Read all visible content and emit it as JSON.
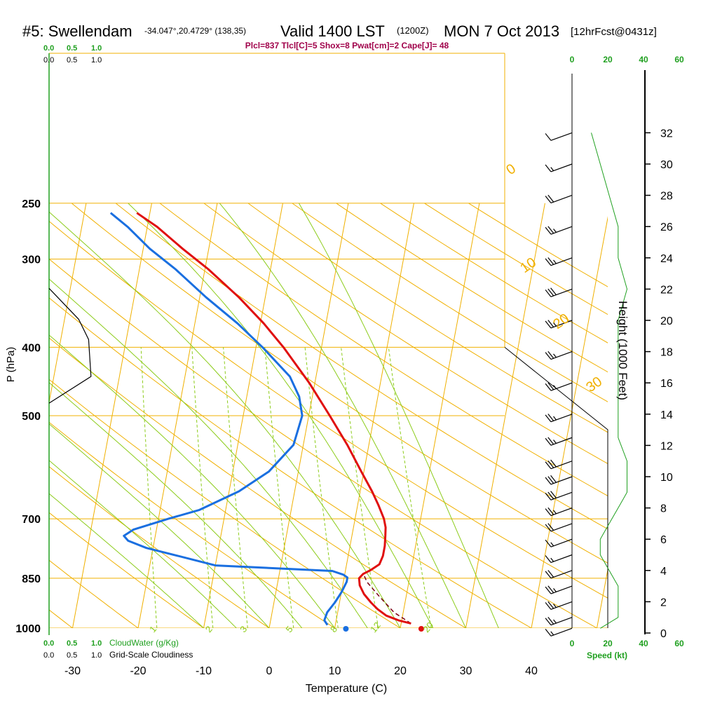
{
  "header": {
    "station": "#5: Swellendam",
    "coords": "-34.047°,20.4729° (138,35)",
    "valid": "Valid 1400 LST",
    "valid_z": "(1200Z)",
    "date": "MON 7 Oct 2013",
    "fcst": "[12hrFcst@0431z]",
    "indices": "Plcl=837 Tlcl[C]=5 Shox=8 Pwat[cm]=2 Cape[J]= 48"
  },
  "colors": {
    "temperature": "#e01010",
    "dewpoint": "#1a6fe0",
    "isotherm": "#f0b000",
    "dry_adiabat": "#f0b000",
    "moist_adiabat": "#8ccc1a",
    "mixing_ratio": "#8ccc1a",
    "green_text": "#20a020",
    "indices_text": "#a0004a",
    "parcel": "#7a0010"
  },
  "chart_data": {
    "type": "skew-t",
    "xlabel": "Temperature (C)",
    "ylabel": "P (hPa)",
    "y2label": "Height (1000 Feet)",
    "x_ticks": [
      "-30",
      "-20",
      "-10",
      "0",
      "10",
      "20",
      "30",
      "40"
    ],
    "pressure_ticks": [
      "250",
      "300",
      "400",
      "500",
      "700",
      "850",
      "1000"
    ],
    "height_ticks": [
      "0",
      "2",
      "4",
      "6",
      "8",
      "10",
      "12",
      "14",
      "16",
      "18",
      "20",
      "22",
      "24",
      "26",
      "28",
      "30",
      "32"
    ],
    "cloud_scale_top_green": [
      "0.0",
      "0.5",
      "1.0"
    ],
    "cloud_scale_top_black": [
      "0.0",
      "0.5",
      "1.0"
    ],
    "cloud_scale_bottom_green": [
      "0.0",
      "0.5",
      "1.0"
    ],
    "cloud_scale_bottom_black": [
      "0.0",
      "0.5",
      "1.0"
    ],
    "cloudwater_label": "CloudWater (g/Kg)",
    "cloudiness_label": "Grid-Scale Cloudiness",
    "speed_label": "Speed (kt)",
    "speed_ticks_top_black": [
      "0"
    ],
    "speed_ticks_top_green": [
      "20",
      "40",
      "60"
    ],
    "speed_ticks_bottom_black": [
      "0"
    ],
    "speed_ticks_bottom_green": [
      "20",
      "40",
      "60"
    ],
    "mixing_ratio_labels": [
      "1",
      "2",
      "3",
      "5",
      "8",
      "12",
      "20"
    ],
    "isotherm_labels": [
      "10",
      "0",
      "-10",
      "-20",
      "-30"
    ],
    "dry_adiabat_labels": [
      "0",
      "10",
      "20",
      "30"
    ],
    "temperature": [
      {
        "p": 985,
        "t": 21.5
      },
      {
        "p": 975,
        "t": 19.5
      },
      {
        "p": 960,
        "t": 17.5
      },
      {
        "p": 940,
        "t": 16.0
      },
      {
        "p": 920,
        "t": 14.8
      },
      {
        "p": 895,
        "t": 13.5
      },
      {
        "p": 870,
        "t": 12.6
      },
      {
        "p": 850,
        "t": 12.3
      },
      {
        "p": 838,
        "t": 12.8
      },
      {
        "p": 828,
        "t": 13.8
      },
      {
        "p": 812,
        "t": 15.0
      },
      {
        "p": 790,
        "t": 15.3
      },
      {
        "p": 765,
        "t": 15.3
      },
      {
        "p": 740,
        "t": 15.1
      },
      {
        "p": 720,
        "t": 14.9
      },
      {
        "p": 700,
        "t": 14.4
      },
      {
        "p": 670,
        "t": 13.2
      },
      {
        "p": 640,
        "t": 11.8
      },
      {
        "p": 600,
        "t": 9.6
      },
      {
        "p": 550,
        "t": 6.7
      },
      {
        "p": 500,
        "t": 3.2
      },
      {
        "p": 450,
        "t": -0.8
      },
      {
        "p": 400,
        "t": -5.8
      },
      {
        "p": 370,
        "t": -9.5
      },
      {
        "p": 340,
        "t": -14.0
      },
      {
        "p": 310,
        "t": -19.5
      },
      {
        "p": 290,
        "t": -24.0
      },
      {
        "p": 270,
        "t": -28.5
      },
      {
        "p": 258,
        "t": -32.0
      }
    ],
    "dewpoint": [
      {
        "p": 990,
        "t": 8.8
      },
      {
        "p": 975,
        "t": 8.2
      },
      {
        "p": 950,
        "t": 8.4
      },
      {
        "p": 920,
        "t": 9.3
      },
      {
        "p": 890,
        "t": 10.0
      },
      {
        "p": 860,
        "t": 10.5
      },
      {
        "p": 848,
        "t": 10.5
      },
      {
        "p": 840,
        "t": 9.8
      },
      {
        "p": 830,
        "t": 8.0
      },
      {
        "p": 815,
        "t": -10.0
      },
      {
        "p": 790,
        "t": -16.0
      },
      {
        "p": 770,
        "t": -21.0
      },
      {
        "p": 752,
        "t": -24.0
      },
      {
        "p": 740,
        "t": -24.8
      },
      {
        "p": 725,
        "t": -23.5
      },
      {
        "p": 700,
        "t": -18.5
      },
      {
        "p": 680,
        "t": -14.0
      },
      {
        "p": 640,
        "t": -8.5
      },
      {
        "p": 600,
        "t": -4.5
      },
      {
        "p": 550,
        "t": -1.5
      },
      {
        "p": 500,
        "t": -1.0
      },
      {
        "p": 470,
        "t": -2.0
      },
      {
        "p": 440,
        "t": -4.0
      },
      {
        "p": 400,
        "t": -9.0
      },
      {
        "p": 370,
        "t": -13.5
      },
      {
        "p": 340,
        "t": -19.0
      },
      {
        "p": 310,
        "t": -24.5
      },
      {
        "p": 290,
        "t": -29.0
      },
      {
        "p": 270,
        "t": -33.0
      },
      {
        "p": 258,
        "t": -36.0
      }
    ],
    "parcel": [
      {
        "p": 985,
        "t": 21.5
      },
      {
        "p": 950,
        "t": 18.6
      },
      {
        "p": 900,
        "t": 15.8
      },
      {
        "p": 860,
        "t": 13.6
      },
      {
        "p": 837,
        "t": 12.8
      }
    ],
    "surface_temperature": 23.2,
    "surface_dewpoint": 11.7,
    "wind_barbs": [
      {
        "h": 32,
        "s": 10
      },
      {
        "h": 30,
        "s": 15
      },
      {
        "h": 28,
        "s": 20
      },
      {
        "h": 26,
        "s": 25
      },
      {
        "h": 24,
        "s": 25
      },
      {
        "h": 22,
        "s": 30
      },
      {
        "h": 20,
        "s": 25
      },
      {
        "h": 18,
        "s": 25
      },
      {
        "h": 16,
        "s": 25
      },
      {
        "h": 14,
        "s": 25
      },
      {
        "h": 12.5,
        "s": 25
      },
      {
        "h": 11,
        "s": 30
      },
      {
        "h": 10,
        "s": 30
      },
      {
        "h": 9,
        "s": 30
      },
      {
        "h": 8,
        "s": 25
      },
      {
        "h": 7,
        "s": 20
      },
      {
        "h": 6,
        "s": 15
      },
      {
        "h": 5,
        "s": 15
      },
      {
        "h": 4,
        "s": 20
      },
      {
        "h": 3,
        "s": 25
      },
      {
        "h": 2,
        "s": 25
      },
      {
        "h": 1,
        "s": 25
      },
      {
        "h": 0.3,
        "s": 15
      }
    ],
    "cloudiness_profile": [
      {
        "p": 330,
        "c": 0.0
      },
      {
        "p": 365,
        "c": 0.62
      },
      {
        "p": 390,
        "c": 0.83
      },
      {
        "p": 440,
        "c": 0.88
      },
      {
        "p": 480,
        "c": 0.0
      }
    ]
  }
}
